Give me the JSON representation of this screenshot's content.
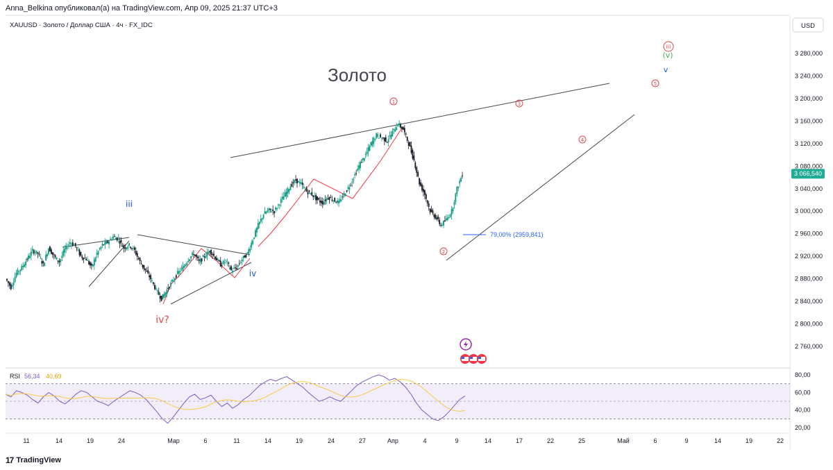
{
  "header": {
    "publisher_line": "Anna_Belkina опубликовал(а) на TradingView.com, Апр 09, 2025 21:37 UTC+3"
  },
  "symbol_line": "XAUUSD · Золото / Доллар США · 4ч · FX_IDC",
  "currency_button": "USD",
  "chart_title_annotation": "Золото",
  "footer": {
    "brand": "TradingView"
  },
  "chart_data": {
    "type": "candlestick",
    "symbol": "XAUUSD",
    "timeframe": "4ч",
    "price_axis": {
      "ticks": [
        "3 280,000",
        "3 240,000",
        "3 200,000",
        "3 160,000",
        "3 120,000",
        "3 080,000",
        "3 040,000",
        "3 000,000",
        "2 960,000",
        "2 920,000",
        "2 880,000",
        "2 840,000",
        "2 800,000",
        "2 760,000"
      ],
      "tick_values": [
        3280,
        3240,
        3200,
        3160,
        3120,
        3080,
        3040,
        3000,
        2960,
        2920,
        2880,
        2840,
        2800,
        2760
      ],
      "last_price_label": "3 066,540",
      "last_price": 3066.54,
      "last_price_color": "#22ab94"
    },
    "time_axis": {
      "labels": [
        "11",
        "14",
        "19",
        "24",
        "Мар",
        "6",
        "11",
        "14",
        "19",
        "24",
        "27",
        "Апр",
        "4",
        "9",
        "14",
        "17",
        "22",
        "25",
        "Май",
        "6",
        "9",
        "14",
        "19",
        "22"
      ]
    },
    "price_path": [
      [
        0,
        2880
      ],
      [
        1,
        2865
      ],
      [
        2,
        2890
      ],
      [
        3,
        2900
      ],
      [
        4,
        2915
      ],
      [
        5,
        2930
      ],
      [
        6,
        2925
      ],
      [
        7,
        2905
      ],
      [
        8,
        2935
      ],
      [
        9,
        2920
      ],
      [
        10,
        2910
      ],
      [
        11,
        2932
      ],
      [
        12,
        2945
      ],
      [
        13,
        2938
      ],
      [
        14,
        2920
      ],
      [
        15,
        2915
      ],
      [
        16,
        2900
      ],
      [
        17,
        2925
      ],
      [
        18,
        2940
      ],
      [
        19,
        2945
      ],
      [
        20,
        2955
      ],
      [
        21,
        2950
      ],
      [
        22,
        2935
      ],
      [
        23,
        2940
      ],
      [
        24,
        2930
      ],
      [
        25,
        2910
      ],
      [
        26,
        2895
      ],
      [
        27,
        2880
      ],
      [
        28,
        2860
      ],
      [
        29,
        2845
      ],
      [
        30,
        2860
      ],
      [
        31,
        2875
      ],
      [
        32,
        2890
      ],
      [
        33,
        2900
      ],
      [
        34,
        2915
      ],
      [
        35,
        2925
      ],
      [
        36,
        2910
      ],
      [
        37,
        2920
      ],
      [
        38,
        2930
      ],
      [
        39,
        2918
      ],
      [
        40,
        2905
      ],
      [
        41,
        2912
      ],
      [
        42,
        2895
      ],
      [
        43,
        2900
      ],
      [
        44,
        2915
      ],
      [
        45,
        2925
      ],
      [
        46,
        2950
      ],
      [
        47,
        2975
      ],
      [
        48,
        2995
      ],
      [
        49,
        3002
      ],
      [
        50,
        3000
      ],
      [
        51,
        3015
      ],
      [
        52,
        3030
      ],
      [
        53,
        3045
      ],
      [
        54,
        3055
      ],
      [
        55,
        3048
      ],
      [
        56,
        3035
      ],
      [
        57,
        3030
      ],
      [
        58,
        3020
      ],
      [
        59,
        3015
      ],
      [
        60,
        3025
      ],
      [
        61,
        3020
      ],
      [
        62,
        3015
      ],
      [
        63,
        3030
      ],
      [
        64,
        3045
      ],
      [
        65,
        3065
      ],
      [
        66,
        3085
      ],
      [
        67,
        3100
      ],
      [
        68,
        3120
      ],
      [
        69,
        3135
      ],
      [
        70,
        3130
      ],
      [
        71,
        3125
      ],
      [
        72,
        3140
      ],
      [
        73,
        3155
      ],
      [
        74,
        3145
      ],
      [
        75,
        3120
      ],
      [
        76,
        3090
      ],
      [
        77,
        3050
      ],
      [
        78,
        3030
      ],
      [
        79,
        3000
      ],
      [
        80,
        2990
      ],
      [
        81,
        2975
      ],
      [
        82,
        2985
      ],
      [
        83,
        3000
      ],
      [
        84,
        3040
      ],
      [
        85,
        3066
      ]
    ],
    "fib_annotation": "79,00% (2959,841)",
    "wave_labels": {
      "red_circled": [
        "1",
        "2",
        "3",
        "4",
        "5",
        "iii"
      ],
      "red_text": "iv?",
      "blue_text": [
        "iii",
        "iv",
        "v"
      ],
      "green_text": "(v)"
    },
    "rsi": {
      "label": "RSI",
      "value1": "56,34",
      "value2": "40,69",
      "value1_color": "#7e57c2",
      "value2_color": "#f7c948",
      "ticks": [
        "80,00",
        "60,00",
        "40,00",
        "20,00"
      ],
      "tick_values": [
        80,
        60,
        40,
        20
      ],
      "band_upper": 70,
      "band_lower": 30,
      "series": [
        58,
        55,
        62,
        60,
        57,
        52,
        48,
        55,
        60,
        56,
        50,
        47,
        52,
        58,
        62,
        60,
        55,
        50,
        48,
        45,
        50,
        54,
        58,
        62,
        60,
        57,
        52,
        45,
        38,
        30,
        25,
        32,
        40,
        48,
        55,
        58,
        52,
        54,
        57,
        50,
        44,
        48,
        42,
        46,
        52,
        56,
        62,
        68,
        72,
        75,
        73,
        76,
        78,
        74,
        70,
        66,
        60,
        55,
        50,
        52,
        55,
        52,
        50,
        56,
        62,
        68,
        72,
        75,
        78,
        80,
        78,
        74,
        76,
        72,
        66,
        58,
        48,
        40,
        35,
        30,
        28,
        32,
        38,
        45,
        52,
        56
      ]
    }
  }
}
